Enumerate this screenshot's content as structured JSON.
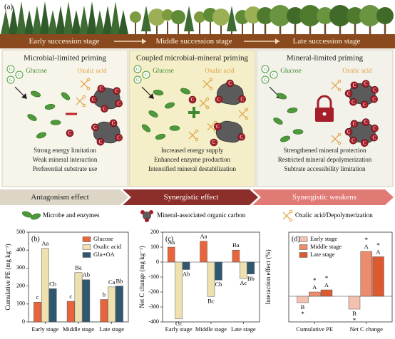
{
  "figure": {
    "panel_label": "(a)",
    "stages": [
      "Early succession stage",
      "Middle succession stage",
      "Late succession stage"
    ],
    "panels": [
      {
        "title": "Microbial-limited priming",
        "glucose_label": "Glucose",
        "oxalic_label": "Oxalic acid",
        "notes": [
          "Strong energy limitation",
          "Weak mineral interaction",
          "Preferential substrate use"
        ],
        "effect": "Antagonism effect"
      },
      {
        "title": "Coupled microbial-mineral priming",
        "glucose_label": "Glucose",
        "oxalic_label": "Oxalic acid",
        "notes": [
          "Increased energy supply",
          "Enhanced enzyme production",
          "Intensified mineral destabilization"
        ],
        "effect": "Synergistic effect"
      },
      {
        "title": "Mineral-limited priming",
        "glucose_label": "Glucose",
        "oxalic_label": "Oxalic acid",
        "notes": [
          "Strengthened mineral protection",
          "Restricted mineral depolymerization",
          "Subtrate accessibility limitation"
        ],
        "effect": "Synergistic weakens"
      }
    ],
    "carbon_symbol": "C",
    "glucose_symbol": "G",
    "legend": [
      "Microbe and enzymes",
      "Mineral-associated organic carbon",
      "Oxalic acid/Depolymerization"
    ]
  },
  "chart_data": [
    {
      "type": "bar",
      "panel_label": "(b)",
      "ylabel": "Cumulative PE (mg kg⁻¹)",
      "categories": [
        "Early stage",
        "Middle stage",
        "Late stage"
      ],
      "series": [
        {
          "name": "Glucose",
          "color": "#e8643c",
          "values": [
            110,
            115,
            125
          ],
          "letters": [
            "c",
            "c",
            "b"
          ]
        },
        {
          "name": "Oxalic acid",
          "color": "#efe0b0",
          "values": [
            410,
            275,
            195
          ],
          "letters": [
            "Aa",
            "Ba",
            "Ca"
          ]
        },
        {
          "name": "Glu+OA",
          "color": "#2f5870",
          "values": [
            185,
            235,
            200
          ],
          "letters": [
            "Cb",
            "Ab",
            "Bb"
          ]
        }
      ],
      "ylim": [
        0,
        500
      ],
      "yticks": [
        0,
        100,
        200,
        300,
        400,
        500
      ]
    },
    {
      "type": "bar",
      "panel_label": "(c)",
      "ylabel": "Net C change (mg kg⁻¹)",
      "categories": [
        "Early stage",
        "Middle stage",
        "Late stage"
      ],
      "series": [
        {
          "color": "#e8643c",
          "values": [
            100,
            140,
            80
          ],
          "letters": [
            "Aa",
            "Aa",
            "Ba"
          ]
        },
        {
          "color": "#efe0b0",
          "values": [
            -380,
            -230,
            -110
          ],
          "letters": [
            "Cc",
            "Bc",
            "Ac"
          ]
        },
        {
          "color": "#2f5870",
          "values": [
            -50,
            -120,
            -80
          ],
          "letters": [
            "Ab",
            "Cb",
            "Bb"
          ]
        }
      ],
      "ylim": [
        -400,
        200
      ],
      "yticks": [
        -400,
        -300,
        -200,
        -100,
        0,
        100,
        200
      ]
    },
    {
      "type": "bar",
      "panel_label": "(d)",
      "ylabel": "Interaction effect (%)",
      "categories": [
        "Cumulative PE",
        "Net C change"
      ],
      "significance": "*",
      "series": [
        {
          "name": "Early stage",
          "color": "#f4c0b0",
          "values": [
            -30,
            -60
          ],
          "letters": [
            "B",
            "B"
          ]
        },
        {
          "name": "Middle stage",
          "color": "#ec8c6c",
          "values": [
            20,
            210
          ],
          "letters": [
            "A",
            "A"
          ]
        },
        {
          "name": "Late stage",
          "color": "#dd5a30",
          "values": [
            30,
            185
          ],
          "letters": [
            "A",
            "A"
          ]
        }
      ],
      "ylim": [
        -120,
        300
      ]
    }
  ]
}
